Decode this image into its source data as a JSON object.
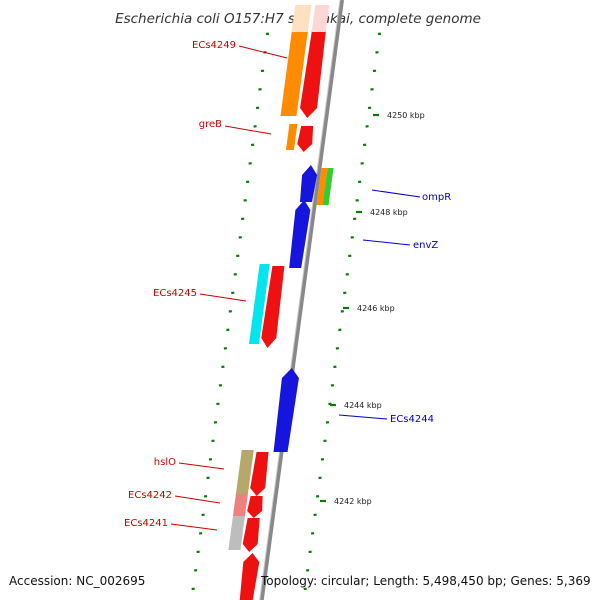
{
  "title": "Escherichia coli O157:H7 str. Sakai, complete genome",
  "footer": {
    "accession": "Accession: NC_002695",
    "topology": "Topology: circular; Length: 5,498,450 bp; Genes: 5,369"
  },
  "scale": {
    "ticks": [
      {
        "label": "4250 kbp",
        "kbp": 4250
      },
      {
        "label": "4248 kbp",
        "kbp": 4248
      },
      {
        "label": "4246 kbp",
        "kbp": 4246
      },
      {
        "label": "4244 kbp",
        "kbp": 4244
      },
      {
        "label": "4242 kbp",
        "kbp": 4242
      }
    ]
  },
  "colors": {
    "forward_label": "#cc0000",
    "reverse_label": "#0000cc",
    "cds_forward": "#ee1111",
    "cds_reverse": "#1515dd",
    "cog_orange": "#ff8c00",
    "cog_cyan": "#00e5ee",
    "cog_khaki": "#b5a86a",
    "cog_pink": "#ee8080",
    "cog_grey": "#bdbdbd",
    "cog_green": "#33cc33",
    "axis": "#888888",
    "tick": "#0a7a0a"
  },
  "genes": [
    {
      "name": "ECs4249",
      "strand": "forward",
      "cog_color": "orange"
    },
    {
      "name": "greB",
      "strand": "forward",
      "cog_color": "orange"
    },
    {
      "name": "ompR",
      "strand": "reverse",
      "cog_color": "orange/green"
    },
    {
      "name": "envZ",
      "strand": "reverse",
      "cog_color": ""
    },
    {
      "name": "ECs4245",
      "strand": "forward",
      "cog_color": "cyan"
    },
    {
      "name": "ECs4244",
      "strand": "reverse",
      "cog_color": ""
    },
    {
      "name": "hslO",
      "strand": "forward",
      "cog_color": "khaki"
    },
    {
      "name": "ECs4242",
      "strand": "forward",
      "cog_color": "pink"
    },
    {
      "name": "ECs4241",
      "strand": "forward",
      "cog_color": "grey"
    }
  ]
}
